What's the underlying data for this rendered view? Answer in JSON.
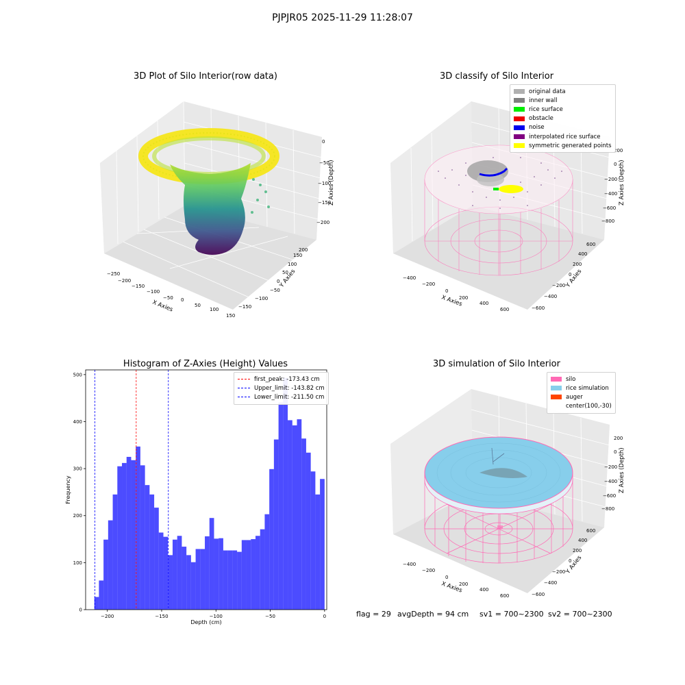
{
  "suptitle": "PJPJR05 2025-11-29 11:28:07",
  "panel1": {
    "title": "3D Plot of Silo Interior(row data)",
    "xlabel": "X Axies",
    "ylabel": "Y Axies",
    "zlabel": "Z Axies (Depth)",
    "xticks": [
      "−250",
      "−200",
      "−150",
      "−100",
      "−50",
      "0",
      "50",
      "100",
      "150"
    ],
    "yticks": [
      "−150",
      "−100",
      "−50",
      "0",
      "50",
      "100",
      "150",
      "200"
    ],
    "zticks": [
      "0",
      "−50",
      "−100",
      "−150",
      "−200"
    ]
  },
  "panel2": {
    "title": "3D classify of Silo Interior",
    "xlabel": "X Axies",
    "ylabel": "Y Axies",
    "zlabel": "Z Axies (Depth)",
    "xticks": [
      "−400",
      "−200",
      "0",
      "200",
      "400",
      "600"
    ],
    "yticks": [
      "−600",
      "−400",
      "−200",
      "0",
      "200",
      "400",
      "600"
    ],
    "zticks": [
      "200",
      "0",
      "−200",
      "−400",
      "−600",
      "−800"
    ],
    "legend": [
      {
        "label": "original data",
        "color": "#b0b0b0"
      },
      {
        "label": "inner wall",
        "color": "#808080"
      },
      {
        "label": "rice surface",
        "color": "#00ee00"
      },
      {
        "label": "obstacle",
        "color": "#ee0000"
      },
      {
        "label": "noise",
        "color": "#0000ee"
      },
      {
        "label": "interpolated rice surface",
        "color": "#800080"
      },
      {
        "label": "symmetric generated points",
        "color": "#ffff00"
      }
    ]
  },
  "panel4": {
    "title": "3D simulation of Silo Interior",
    "xlabel": "X Axies",
    "ylabel": "Y Axies",
    "zlabel": "Z Axies (Depth)",
    "xticks": [
      "−400",
      "−200",
      "0",
      "200",
      "400",
      "600"
    ],
    "yticks": [
      "−600",
      "−400",
      "−200",
      "0",
      "200",
      "400",
      "600"
    ],
    "zticks": [
      "200",
      "0",
      "−200",
      "−400",
      "−600",
      "−800"
    ],
    "legend": [
      {
        "label": "silo",
        "color": "#ff69b4"
      },
      {
        "label": "rice simulation",
        "color": "#87ceeb"
      },
      {
        "label": "auger",
        "color": "#ff4500"
      },
      {
        "label": "center(100,-30)",
        "color": ""
      }
    ]
  },
  "chart_data": {
    "type": "bar",
    "title": "Histogram of Z-Axies (Height) Values",
    "xlabel": "Depth (cm)",
    "ylabel": "Frequency",
    "xlim": [
      -220,
      2
    ],
    "ylim": [
      0,
      510
    ],
    "xticks": [
      -200,
      -150,
      -100,
      -50,
      0
    ],
    "xtick_labels": [
      "−200",
      "−150",
      "−100",
      "−50",
      "0"
    ],
    "yticks": [
      0,
      100,
      200,
      300,
      400,
      500
    ],
    "bin_start": -212,
    "bin_width": 4.24,
    "values": [
      27,
      62,
      149,
      190,
      245,
      305,
      312,
      325,
      318,
      347,
      307,
      265,
      245,
      217,
      164,
      155,
      116,
      149,
      157,
      134,
      116,
      101,
      129,
      129,
      156,
      195,
      151,
      152,
      126,
      126,
      126,
      123,
      148,
      148,
      150,
      157,
      171,
      203,
      299,
      362,
      441,
      493,
      403,
      392,
      405,
      364,
      334,
      294,
      245,
      278
    ],
    "color": "#0000ff",
    "vlines": [
      {
        "x": -173.43,
        "label": "first_peak: -173.43 cm",
        "color": "#ff0000"
      },
      {
        "x": -143.82,
        "label": "Upper_limit: -143.82 cm",
        "color": "#0000ff"
      },
      {
        "x": -211.5,
        "label": "Lower_limit: -211.50 cm",
        "color": "#0000ff"
      }
    ],
    "legend_position": "top-right"
  },
  "footer": {
    "flag": "flag = 29",
    "avg": "avgDepth = 94 cm",
    "sv1": "sv1 = 700~2300",
    "sv2": "sv2 = 700~2300"
  }
}
